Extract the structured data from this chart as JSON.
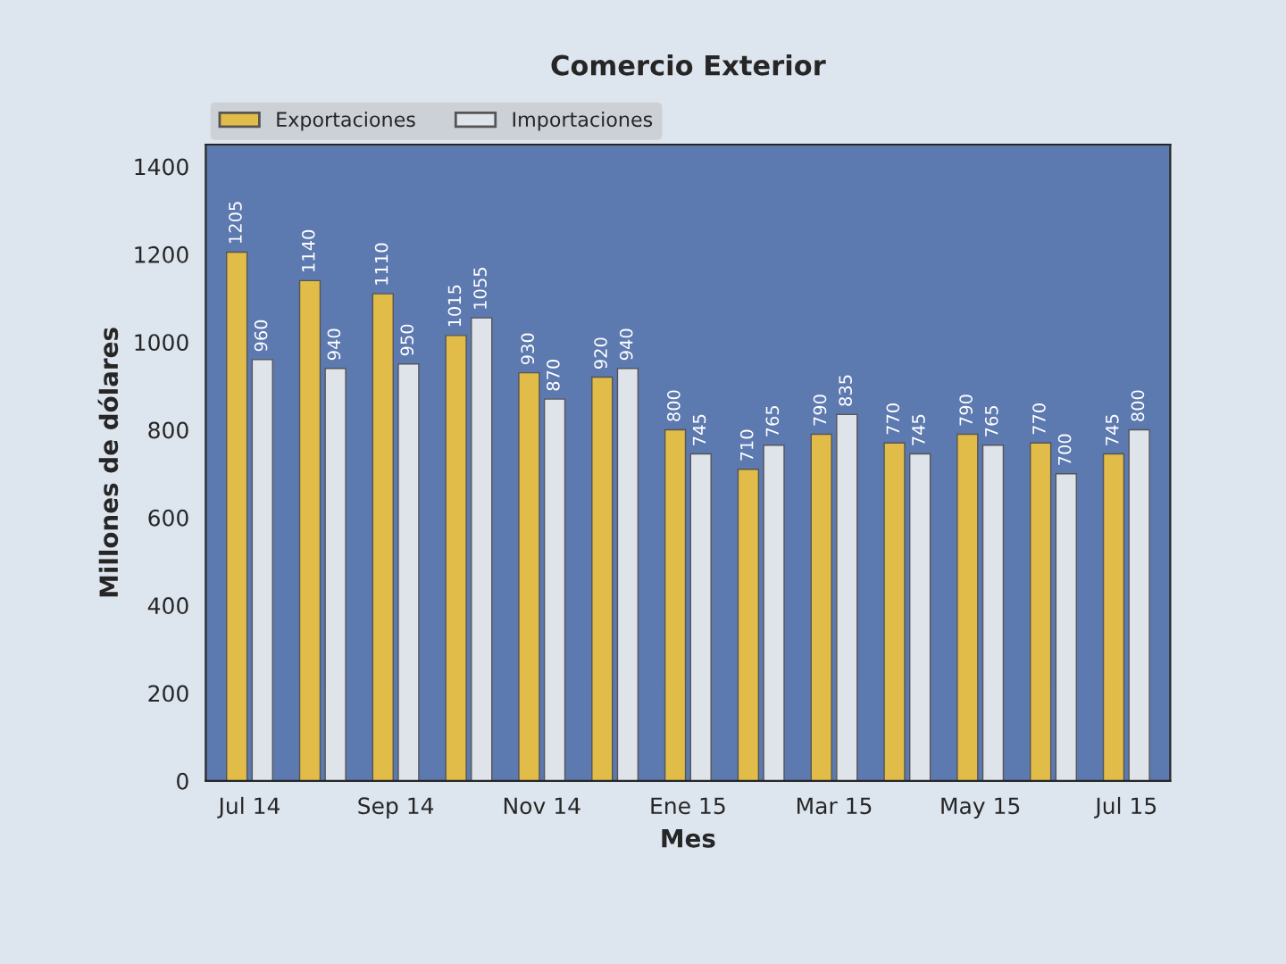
{
  "chart_data": {
    "type": "bar",
    "title": "Comercio Exterior",
    "xlabel": "Mes",
    "ylabel": "Millones de dólares",
    "categories": [
      "Jul 14",
      null,
      "Sep 14",
      null,
      "Nov 14",
      null,
      "Ene 15",
      null,
      "Mar 15",
      null,
      "May 15",
      null,
      "Jul 15"
    ],
    "series": [
      {
        "name": "Exportaciones",
        "color": "#e2bc48",
        "values": [
          1205,
          1140,
          1110,
          1015,
          930,
          920,
          800,
          710,
          790,
          770,
          790,
          770,
          745
        ]
      },
      {
        "name": "Importaciones",
        "color": "#dfe4ea",
        "values": [
          960,
          940,
          950,
          1055,
          870,
          940,
          745,
          765,
          835,
          745,
          765,
          700,
          800
        ]
      }
    ],
    "ylim": [
      0,
      1450
    ],
    "yticks": [
      0,
      200,
      400,
      600,
      800,
      1000,
      1200,
      1400
    ],
    "data_labels": true,
    "legend": "top left",
    "grid": false
  }
}
